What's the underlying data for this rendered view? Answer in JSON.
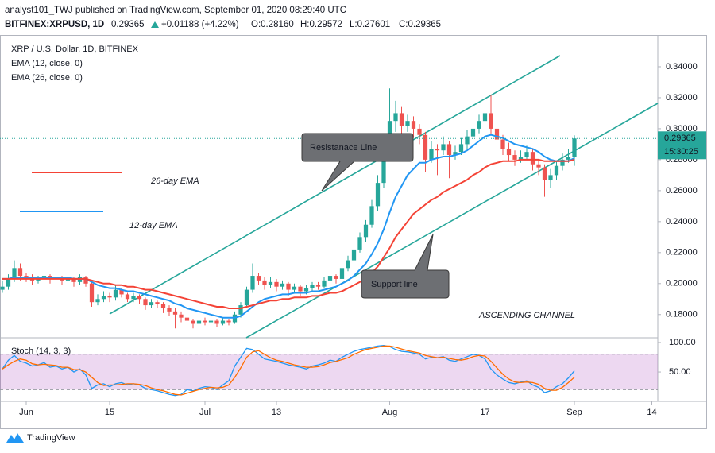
{
  "header": {
    "byline": "analyst101_TWJ published on TradingView.com, September 01, 2020 08:29:40 UTC",
    "symbol": "BITFINEX:XRPUSD, 1D",
    "price": "0.29365",
    "change": "+0.01188 (+4.22%)",
    "open": "O:0.28160",
    "high": "H:0.29572",
    "low": "L:0.27601",
    "close": "C:0.29365"
  },
  "footer": {
    "brand": "TradingView"
  },
  "chart_data": {
    "type": "candlestick",
    "title": "XRP / U.S. Dollar, 1D, BITFINEX",
    "up_color": "#26a69a",
    "down_color": "#ef5350",
    "grid": false,
    "xlim": [
      -0.4,
      110
    ],
    "xticks": [
      {
        "value": 4,
        "label": "Jun"
      },
      {
        "value": 18,
        "label": "15"
      },
      {
        "value": 34,
        "label": "Jul"
      },
      {
        "value": 46,
        "label": "13"
      },
      {
        "value": 65,
        "label": "Aug"
      },
      {
        "value": 81,
        "label": "17"
      },
      {
        "value": 96,
        "label": "Sep"
      },
      {
        "value": 109,
        "label": "14"
      }
    ],
    "ylim": [
      0.165,
      0.36
    ],
    "yticks": [
      {
        "value": 0.18,
        "label": "0.18000"
      },
      {
        "value": 0.2,
        "label": "0.20000"
      },
      {
        "value": 0.22,
        "label": "0.22000"
      },
      {
        "value": 0.24,
        "label": "0.24000"
      },
      {
        "value": 0.26,
        "label": "0.26000"
      },
      {
        "value": 0.28,
        "label": "0.28000"
      },
      {
        "value": 0.3,
        "label": "0.30000"
      },
      {
        "value": 0.32,
        "label": "0.32000"
      },
      {
        "value": 0.34,
        "label": "0.34000"
      }
    ],
    "candles": [
      [
        0.196,
        0.202,
        0.194,
        0.198
      ],
      [
        0.198,
        0.206,
        0.196,
        0.203
      ],
      [
        0.203,
        0.215,
        0.201,
        0.21
      ],
      [
        0.21,
        0.213,
        0.202,
        0.205
      ],
      [
        0.205,
        0.207,
        0.201,
        0.204
      ],
      [
        0.204,
        0.206,
        0.199,
        0.202
      ],
      [
        0.202,
        0.205,
        0.2,
        0.203
      ],
      [
        0.203,
        0.207,
        0.201,
        0.205
      ],
      [
        0.205,
        0.206,
        0.2,
        0.203
      ],
      [
        0.203,
        0.206,
        0.201,
        0.204
      ],
      [
        0.204,
        0.205,
        0.199,
        0.202
      ],
      [
        0.202,
        0.205,
        0.2,
        0.203
      ],
      [
        0.203,
        0.204,
        0.198,
        0.201
      ],
      [
        0.201,
        0.206,
        0.199,
        0.204
      ],
      [
        0.204,
        0.205,
        0.198,
        0.2
      ],
      [
        0.2,
        0.201,
        0.185,
        0.188
      ],
      [
        0.188,
        0.193,
        0.186,
        0.19
      ],
      [
        0.19,
        0.195,
        0.188,
        0.192
      ],
      [
        0.192,
        0.194,
        0.188,
        0.191
      ],
      [
        0.191,
        0.199,
        0.189,
        0.196
      ],
      [
        0.196,
        0.197,
        0.191,
        0.193
      ],
      [
        0.193,
        0.194,
        0.188,
        0.19
      ],
      [
        0.19,
        0.194,
        0.188,
        0.192
      ],
      [
        0.192,
        0.193,
        0.187,
        0.19
      ],
      [
        0.19,
        0.191,
        0.183,
        0.186
      ],
      [
        0.186,
        0.19,
        0.184,
        0.188
      ],
      [
        0.188,
        0.189,
        0.184,
        0.187
      ],
      [
        0.187,
        0.188,
        0.181,
        0.184
      ],
      [
        0.184,
        0.186,
        0.179,
        0.182
      ],
      [
        0.182,
        0.184,
        0.171,
        0.18
      ],
      [
        0.18,
        0.182,
        0.175,
        0.178
      ],
      [
        0.178,
        0.18,
        0.173,
        0.176
      ],
      [
        0.176,
        0.177,
        0.171,
        0.174
      ],
      [
        0.174,
        0.178,
        0.172,
        0.176
      ],
      [
        0.176,
        0.178,
        0.173,
        0.175
      ],
      [
        0.175,
        0.178,
        0.173,
        0.176
      ],
      [
        0.176,
        0.177,
        0.172,
        0.174
      ],
      [
        0.174,
        0.178,
        0.173,
        0.176
      ],
      [
        0.176,
        0.177,
        0.173,
        0.175
      ],
      [
        0.175,
        0.182,
        0.174,
        0.18
      ],
      [
        0.18,
        0.188,
        0.178,
        0.186
      ],
      [
        0.186,
        0.198,
        0.184,
        0.196
      ],
      [
        0.196,
        0.213,
        0.194,
        0.205
      ],
      [
        0.205,
        0.207,
        0.199,
        0.202
      ],
      [
        0.202,
        0.204,
        0.196,
        0.199
      ],
      [
        0.199,
        0.204,
        0.197,
        0.201
      ],
      [
        0.201,
        0.203,
        0.195,
        0.198
      ],
      [
        0.198,
        0.202,
        0.196,
        0.2
      ],
      [
        0.2,
        0.201,
        0.192,
        0.196
      ],
      [
        0.196,
        0.2,
        0.194,
        0.198
      ],
      [
        0.198,
        0.199,
        0.192,
        0.195
      ],
      [
        0.195,
        0.199,
        0.193,
        0.197
      ],
      [
        0.197,
        0.201,
        0.195,
        0.199
      ],
      [
        0.199,
        0.201,
        0.196,
        0.198
      ],
      [
        0.198,
        0.204,
        0.197,
        0.202
      ],
      [
        0.202,
        0.207,
        0.2,
        0.205
      ],
      [
        0.205,
        0.206,
        0.2,
        0.203
      ],
      [
        0.203,
        0.212,
        0.202,
        0.21
      ],
      [
        0.21,
        0.218,
        0.208,
        0.215
      ],
      [
        0.215,
        0.225,
        0.213,
        0.222
      ],
      [
        0.222,
        0.233,
        0.22,
        0.23
      ],
      [
        0.23,
        0.241,
        0.227,
        0.238
      ],
      [
        0.238,
        0.254,
        0.236,
        0.25
      ],
      [
        0.25,
        0.27,
        0.247,
        0.265
      ],
      [
        0.265,
        0.29,
        0.262,
        0.283
      ],
      [
        0.283,
        0.326,
        0.28,
        0.305
      ],
      [
        0.305,
        0.318,
        0.298,
        0.31
      ],
      [
        0.31,
        0.314,
        0.296,
        0.302
      ],
      [
        0.302,
        0.309,
        0.298,
        0.305
      ],
      [
        0.305,
        0.308,
        0.294,
        0.3
      ],
      [
        0.3,
        0.303,
        0.29,
        0.296
      ],
      [
        0.296,
        0.298,
        0.272,
        0.28
      ],
      [
        0.28,
        0.292,
        0.278,
        0.287
      ],
      [
        0.287,
        0.29,
        0.27,
        0.286
      ],
      [
        0.286,
        0.295,
        0.283,
        0.29
      ],
      [
        0.29,
        0.292,
        0.268,
        0.283
      ],
      [
        0.283,
        0.289,
        0.28,
        0.285
      ],
      [
        0.285,
        0.294,
        0.283,
        0.29
      ],
      [
        0.29,
        0.299,
        0.287,
        0.295
      ],
      [
        0.295,
        0.304,
        0.292,
        0.3
      ],
      [
        0.3,
        0.309,
        0.297,
        0.305
      ],
      [
        0.305,
        0.327,
        0.302,
        0.31
      ],
      [
        0.31,
        0.322,
        0.296,
        0.3
      ],
      [
        0.3,
        0.303,
        0.288,
        0.293
      ],
      [
        0.293,
        0.296,
        0.283,
        0.287
      ],
      [
        0.287,
        0.291,
        0.279,
        0.283
      ],
      [
        0.283,
        0.286,
        0.276,
        0.28
      ],
      [
        0.28,
        0.286,
        0.278,
        0.282
      ],
      [
        0.282,
        0.289,
        0.28,
        0.285
      ],
      [
        0.285,
        0.287,
        0.273,
        0.277
      ],
      [
        0.277,
        0.28,
        0.27,
        0.275
      ],
      [
        0.275,
        0.277,
        0.256,
        0.267
      ],
      [
        0.267,
        0.274,
        0.262,
        0.27
      ],
      [
        0.27,
        0.279,
        0.267,
        0.276
      ],
      [
        0.276,
        0.284,
        0.273,
        0.28
      ],
      [
        0.28,
        0.287,
        0.278,
        0.2816
      ],
      [
        0.2816,
        0.29572,
        0.27601,
        0.29365
      ]
    ],
    "series": [
      {
        "name": "EMA (12, close, 0)",
        "color": "#2196f3",
        "values": [
          0.203,
          0.203,
          0.204,
          0.204,
          0.204,
          0.204,
          0.204,
          0.204,
          0.204,
          0.204,
          0.204,
          0.204,
          0.203,
          0.203,
          0.203,
          0.201,
          0.199,
          0.198,
          0.197,
          0.197,
          0.196,
          0.195,
          0.195,
          0.194,
          0.193,
          0.192,
          0.191,
          0.19,
          0.189,
          0.187,
          0.186,
          0.184,
          0.183,
          0.182,
          0.181,
          0.18,
          0.179,
          0.178,
          0.178,
          0.178,
          0.179,
          0.182,
          0.185,
          0.188,
          0.19,
          0.191,
          0.192,
          0.193,
          0.193,
          0.194,
          0.194,
          0.194,
          0.195,
          0.195,
          0.196,
          0.197,
          0.198,
          0.2,
          0.202,
          0.205,
          0.209,
          0.213,
          0.219,
          0.226,
          0.235,
          0.246,
          0.256,
          0.263,
          0.27,
          0.274,
          0.278,
          0.278,
          0.28,
          0.281,
          0.282,
          0.282,
          0.283,
          0.284,
          0.286,
          0.289,
          0.292,
          0.295,
          0.296,
          0.295,
          0.294,
          0.292,
          0.29,
          0.289,
          0.288,
          0.287,
          0.285,
          0.282,
          0.28,
          0.279,
          0.279,
          0.279,
          0.281
        ]
      },
      {
        "name": "EMA (26, close, 0)",
        "color": "#f44336",
        "values": [
          0.203,
          0.203,
          0.203,
          0.203,
          0.203,
          0.203,
          0.203,
          0.203,
          0.203,
          0.203,
          0.203,
          0.203,
          0.203,
          0.203,
          0.203,
          0.202,
          0.201,
          0.2,
          0.2,
          0.199,
          0.199,
          0.198,
          0.198,
          0.197,
          0.196,
          0.196,
          0.195,
          0.194,
          0.193,
          0.192,
          0.191,
          0.19,
          0.189,
          0.188,
          0.187,
          0.186,
          0.185,
          0.185,
          0.184,
          0.184,
          0.184,
          0.185,
          0.186,
          0.187,
          0.188,
          0.189,
          0.189,
          0.19,
          0.19,
          0.191,
          0.191,
          0.191,
          0.192,
          0.192,
          0.193,
          0.194,
          0.194,
          0.195,
          0.197,
          0.199,
          0.201,
          0.204,
          0.207,
          0.211,
          0.217,
          0.223,
          0.23,
          0.235,
          0.24,
          0.245,
          0.248,
          0.251,
          0.254,
          0.256,
          0.259,
          0.261,
          0.263,
          0.265,
          0.267,
          0.27,
          0.272,
          0.275,
          0.277,
          0.278,
          0.279,
          0.279,
          0.279,
          0.28,
          0.28,
          0.28,
          0.28,
          0.279,
          0.279,
          0.279,
          0.279,
          0.279,
          0.28
        ]
      }
    ],
    "last_price": {
      "countdown": "15:30:25",
      "color": "#26a69a"
    },
    "annotations": [
      {
        "text": "Resistanace Line"
      },
      {
        "text": "Support line"
      },
      {
        "text": "ASCENDING CHANNEL"
      },
      {
        "text": "26-day EMA",
        "color": "#f44336"
      },
      {
        "text": "12-day EMA",
        "color": "#2196f3"
      }
    ],
    "stoch": {
      "title": "Stoch (14, 3, 3)",
      "ylim": [
        11,
        108
      ],
      "yticks": [
        {
          "value": 100,
          "label": "100.00"
        },
        {
          "value": 50,
          "label": "50.00"
        }
      ],
      "band": [
        20,
        80
      ],
      "band_color": "#9c27b0",
      "series": [
        {
          "color": "#2196f3",
          "values": [
            55,
            70,
            78,
            68,
            65,
            60,
            62,
            66,
            58,
            60,
            55,
            58,
            50,
            55,
            45,
            22,
            28,
            30,
            25,
            30,
            32,
            28,
            30,
            28,
            22,
            20,
            18,
            15,
            12,
            10,
            12,
            20,
            18,
            22,
            25,
            24,
            20,
            28,
            35,
            60,
            75,
            90,
            88,
            80,
            72,
            70,
            68,
            65,
            62,
            60,
            58,
            55,
            60,
            62,
            65,
            70,
            68,
            75,
            80,
            85,
            88,
            90,
            92,
            94,
            95,
            93,
            88,
            85,
            84,
            82,
            80,
            72,
            75,
            74,
            76,
            70,
            68,
            72,
            76,
            80,
            78,
            72,
            55,
            45,
            38,
            32,
            30,
            33,
            35,
            28,
            24,
            15,
            18,
            25,
            30,
            40,
            52
          ]
        },
        {
          "color": "#ff6d00",
          "values": [
            55,
            62,
            68,
            72,
            70,
            64,
            62,
            63,
            62,
            61,
            58,
            58,
            54,
            54,
            50,
            41,
            32,
            27,
            28,
            28,
            29,
            30,
            30,
            29,
            27,
            23,
            20,
            18,
            15,
            12,
            11,
            14,
            17,
            20,
            22,
            24,
            23,
            24,
            28,
            41,
            57,
            75,
            84,
            86,
            80,
            74,
            70,
            68,
            65,
            62,
            60,
            58,
            58,
            59,
            62,
            66,
            68,
            71,
            74,
            80,
            84,
            88,
            90,
            92,
            94,
            94,
            92,
            89,
            86,
            84,
            82,
            78,
            76,
            74,
            75,
            73,
            71,
            70,
            72,
            76,
            78,
            77,
            68,
            57,
            46,
            38,
            33,
            32,
            33,
            32,
            29,
            22,
            19,
            19,
            24,
            32,
            41
          ]
        }
      ]
    }
  }
}
